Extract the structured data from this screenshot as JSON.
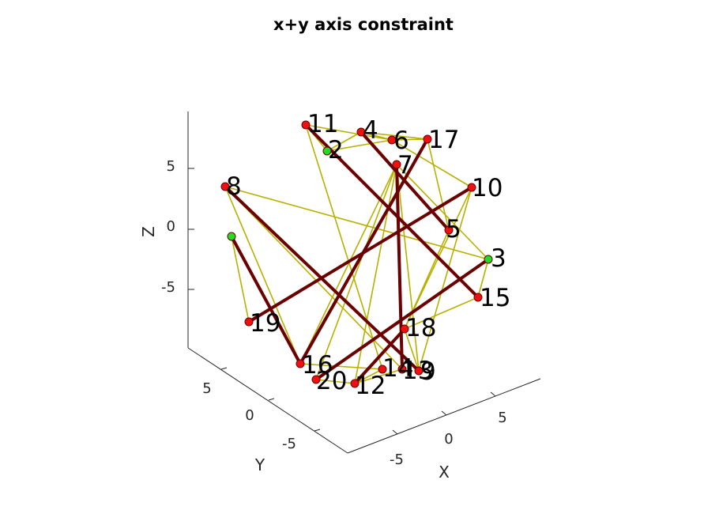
{
  "figure": {
    "title": "x+y axis constraint",
    "axes": {
      "x_label": "X",
      "y_label": "Y",
      "z_label": "Z",
      "x_ticks": [
        "-5",
        "0",
        "5"
      ],
      "y_ticks": [
        "5",
        "0",
        "-5"
      ],
      "z_ticks": [
        "5",
        "0",
        "-5"
      ]
    },
    "colors": {
      "fixed_node": "#22dd22",
      "free_node": "#ee1111",
      "soft_edge": "#b8b000",
      "strong_edge": "#6b0000"
    },
    "nodes": [
      {
        "id": "1",
        "fixed": true
      },
      {
        "id": "2",
        "fixed": true
      },
      {
        "id": "3",
        "fixed": true
      },
      {
        "id": "4",
        "fixed": false
      },
      {
        "id": "5",
        "fixed": false
      },
      {
        "id": "6",
        "fixed": false
      },
      {
        "id": "7",
        "fixed": false
      },
      {
        "id": "8",
        "fixed": false
      },
      {
        "id": "9",
        "fixed": false
      },
      {
        "id": "10",
        "fixed": false
      },
      {
        "id": "11",
        "fixed": false
      },
      {
        "id": "12",
        "fixed": false
      },
      {
        "id": "13",
        "fixed": false
      },
      {
        "id": "14",
        "fixed": false
      },
      {
        "id": "15",
        "fixed": false
      },
      {
        "id": "16",
        "fixed": false
      },
      {
        "id": "17",
        "fixed": false
      },
      {
        "id": "18",
        "fixed": false
      },
      {
        "id": "19",
        "fixed": false
      },
      {
        "id": "20",
        "fixed": false
      }
    ],
    "strong_edges": [
      [
        "11",
        "15"
      ],
      [
        "4",
        "5"
      ],
      [
        "17",
        "16"
      ],
      [
        "7",
        "13"
      ],
      [
        "10",
        "19"
      ],
      [
        "8",
        "9"
      ],
      [
        "1",
        "16"
      ],
      [
        "3",
        "20"
      ],
      [
        "18",
        "12"
      ]
    ],
    "soft_edges": [
      [
        "11",
        "2"
      ],
      [
        "11",
        "6"
      ],
      [
        "2",
        "4"
      ],
      [
        "2",
        "6"
      ],
      [
        "4",
        "6"
      ],
      [
        "6",
        "17"
      ],
      [
        "6",
        "10"
      ],
      [
        "17",
        "5"
      ],
      [
        "4",
        "17"
      ],
      [
        "7",
        "20"
      ],
      [
        "7",
        "16"
      ],
      [
        "7",
        "12"
      ],
      [
        "8",
        "3"
      ],
      [
        "8",
        "16"
      ],
      [
        "8",
        "13"
      ],
      [
        "1",
        "19"
      ],
      [
        "10",
        "18"
      ],
      [
        "10",
        "9"
      ],
      [
        "3",
        "15"
      ],
      [
        "15",
        "18"
      ],
      [
        "18",
        "9"
      ],
      [
        "13",
        "12"
      ],
      [
        "14",
        "12"
      ],
      [
        "20",
        "12"
      ],
      [
        "16",
        "14"
      ],
      [
        "5",
        "18"
      ],
      [
        "7",
        "9"
      ],
      [
        "7",
        "3"
      ],
      [
        "11",
        "14"
      ]
    ]
  }
}
